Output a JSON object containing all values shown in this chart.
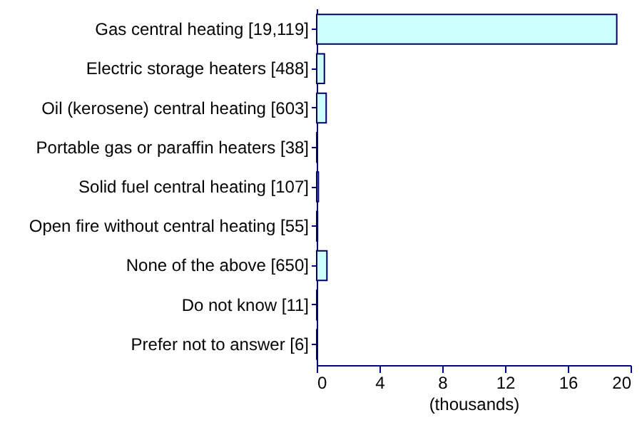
{
  "chart_data": {
    "type": "bar",
    "orientation": "horizontal",
    "xlabel": "(thousands)",
    "categories": [
      "Gas central heating [19,119]",
      "Electric storage heaters [488]",
      "Oil (kerosene) central heating [603]",
      "Portable gas or paraffin heaters [38]",
      "Solid fuel central heating [107]",
      "Open fire without central heating [55]",
      "None of the above [650]",
      "Do not know [11]",
      "Prefer not to answer [6]"
    ],
    "values": [
      19.119,
      0.488,
      0.603,
      0.038,
      0.107,
      0.055,
      0.65,
      0.011,
      0.006
    ],
    "color": "#ccffff",
    "xlim": [
      0,
      20
    ],
    "xticks": [
      0,
      4,
      8,
      12,
      16,
      20
    ],
    "grid": false
  }
}
